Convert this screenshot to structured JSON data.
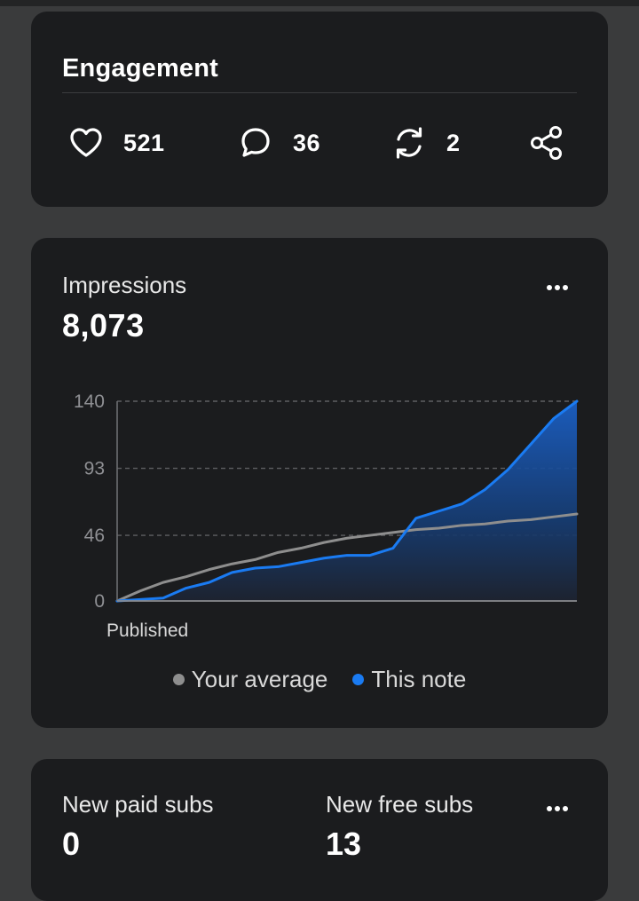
{
  "engagement": {
    "title": "Engagement",
    "likes": "521",
    "comments": "36",
    "restacks": "2",
    "icons": [
      "heart-icon",
      "comment-icon",
      "restack-icon",
      "share-icon"
    ]
  },
  "impressions": {
    "label": "Impressions",
    "value": "8,073",
    "menu_icon": "more-icon"
  },
  "chart_data": {
    "type": "line",
    "xlabel": "Published",
    "ylabel": "",
    "ylim": [
      0,
      140
    ],
    "yticks": [
      0,
      46,
      93,
      140
    ],
    "ytick_labels": [
      "0",
      "46",
      "93",
      "140"
    ],
    "grid": "horizontal dashed",
    "legend_placement": "bottom-center",
    "x": [
      0,
      5,
      10,
      15,
      20,
      25,
      30,
      35,
      40,
      45,
      50,
      55,
      60,
      65,
      70,
      75,
      80,
      85,
      90,
      95,
      100
    ],
    "series": [
      {
        "name": "Your average",
        "color": "#8e8e8e",
        "values": [
          0,
          7,
          13,
          17,
          22,
          26,
          29,
          34,
          37,
          41,
          44,
          46,
          48,
          50,
          51,
          53,
          54,
          56,
          57,
          59,
          61
        ]
      },
      {
        "name": "This note",
        "color": "#1a7bf2",
        "values": [
          0,
          1,
          2,
          9,
          13,
          20,
          23,
          24,
          27,
          30,
          32,
          32,
          37,
          58,
          63,
          68,
          78,
          92,
          110,
          128,
          140
        ]
      }
    ]
  },
  "legend": [
    {
      "label": "Your average",
      "color": "#8e8e8e"
    },
    {
      "label": "This note",
      "color": "#1a7bf2"
    }
  ],
  "subs": {
    "paid_label": "New paid subs",
    "paid_value": "0",
    "free_label": "New free subs",
    "free_value": "13"
  }
}
